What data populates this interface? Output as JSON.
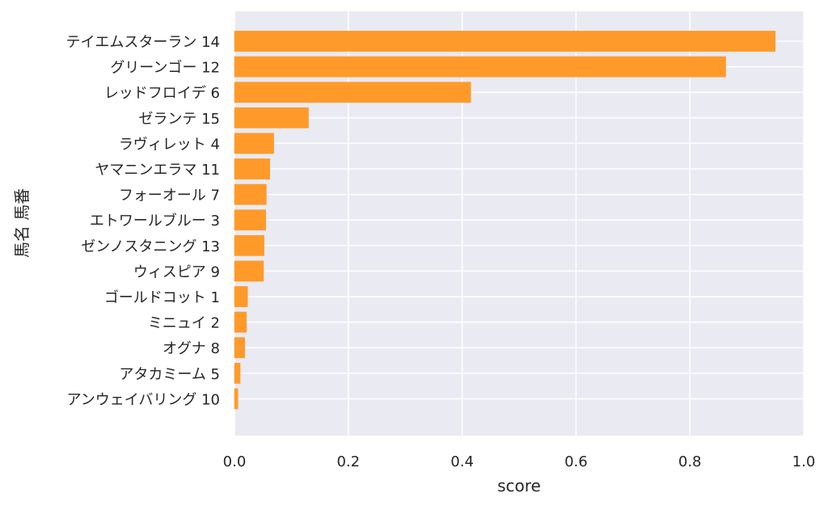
{
  "chart_data": {
    "type": "bar",
    "orientation": "horizontal",
    "categories": [
      "テイエムスターラン 14",
      "グリーンゴー 12",
      "レッドフロイデ 6",
      "ゼランテ 15",
      "ラヴィレット 4",
      "ヤマニンエラマ 11",
      "フォーオール 7",
      "エトワールブルー 3",
      "ゼンノスタニング 13",
      "ウィスピア 9",
      "ゴールドコット 1",
      "ミニュイ 2",
      "オグナ 8",
      "アタカミーム 5",
      "アンウェイバリング 10"
    ],
    "values": [
      0.95,
      0.863,
      0.415,
      0.13,
      0.069,
      0.062,
      0.056,
      0.055,
      0.052,
      0.051,
      0.023,
      0.021,
      0.018,
      0.01,
      0.006
    ],
    "xlabel": "score",
    "ylabel": "馬名 馬番",
    "xlim": [
      0.0,
      1.0
    ],
    "xticks": [
      "0.0",
      "0.2",
      "0.4",
      "0.6",
      "0.8",
      "1.0"
    ],
    "grid": true,
    "colors": {
      "bar": "#ff9a2a",
      "plot_background": "#eaeaf2",
      "grid": "#ffffff",
      "text": "#262626"
    }
  }
}
